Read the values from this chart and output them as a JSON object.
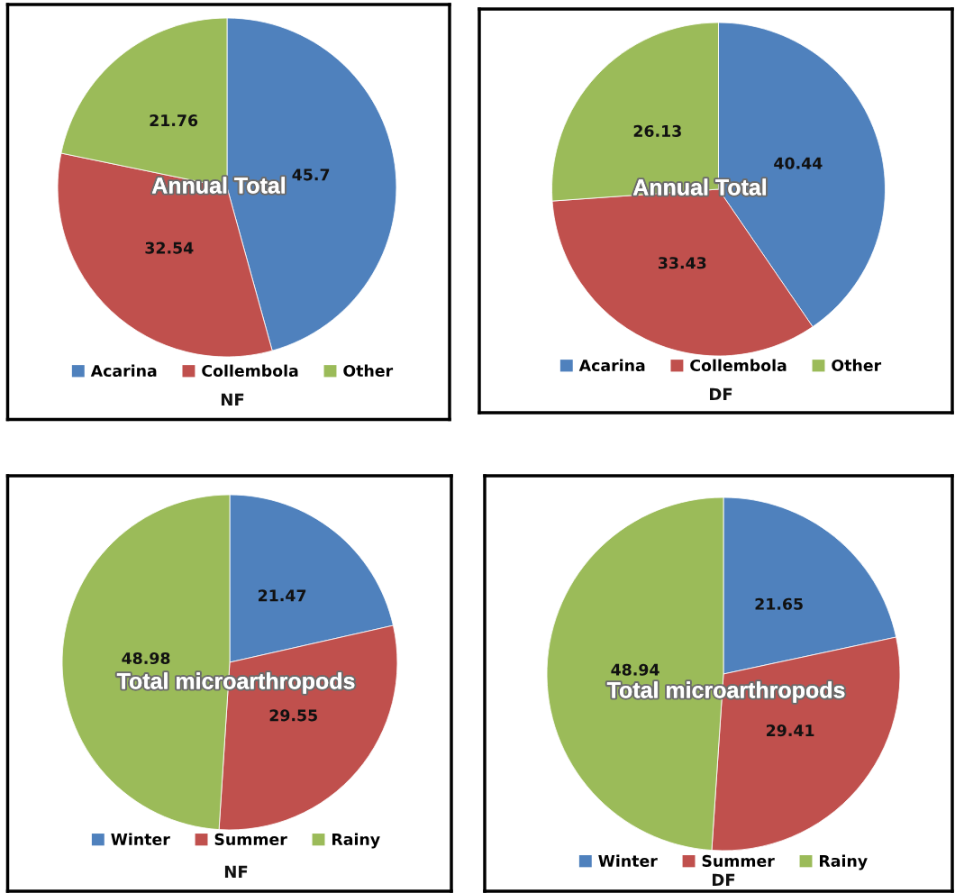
{
  "chart_data": [
    {
      "type": "pie",
      "title": "Annual Total",
      "xlabel": "NF",
      "categories": [
        "Acarina",
        "Collembola",
        "Other"
      ],
      "values": [
        45.7,
        32.54,
        21.76
      ],
      "colors": [
        "#4f81bd",
        "#c0504d",
        "#9bbb59"
      ],
      "data_labels": true,
      "legend": "bottom"
    },
    {
      "type": "pie",
      "title": "Annual Total",
      "xlabel": "DF",
      "categories": [
        "Acarina",
        "Collembola",
        "Other"
      ],
      "values": [
        40.44,
        33.43,
        26.13
      ],
      "colors": [
        "#4f81bd",
        "#c0504d",
        "#9bbb59"
      ],
      "data_labels": true,
      "legend": "bottom"
    },
    {
      "type": "pie",
      "title": "Total microarthropods",
      "xlabel": "NF",
      "categories": [
        "Winter",
        "Summer",
        "Rainy"
      ],
      "values": [
        21.47,
        29.55,
        48.98
      ],
      "colors": [
        "#4f81bd",
        "#c0504d",
        "#9bbb59"
      ],
      "data_labels": true,
      "legend": "bottom"
    },
    {
      "type": "pie",
      "title": "Total microarthropods",
      "xlabel": "DF",
      "categories": [
        "Winter",
        "Summer",
        "Rainy"
      ],
      "values": [
        21.65,
        29.41,
        48.94
      ],
      "colors": [
        "#4f81bd",
        "#c0504d",
        "#9bbb59"
      ],
      "data_labels": true,
      "legend": "bottom"
    }
  ]
}
